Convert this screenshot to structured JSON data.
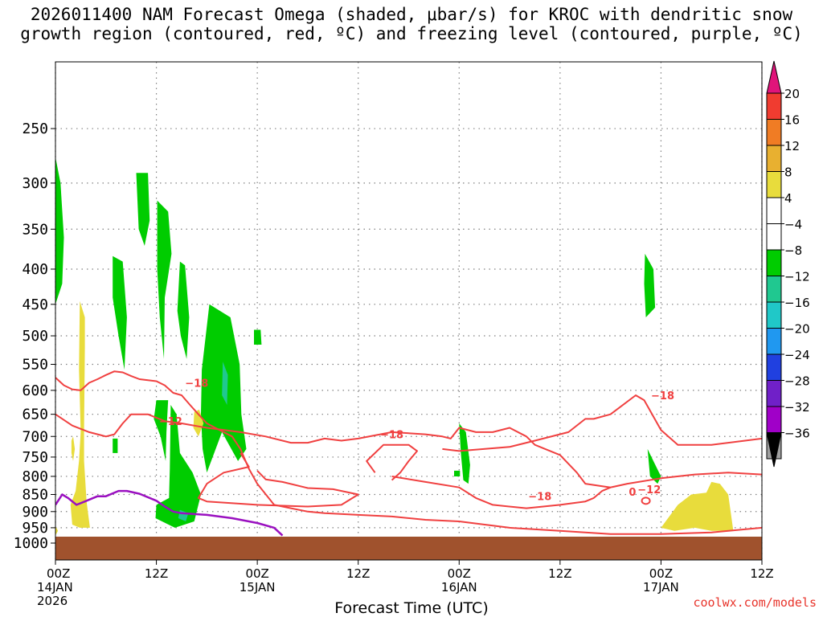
{
  "title": {
    "line1": "2026011400 NAM Forecast Omega (shaded, μbar/s) for KROC with dendritic snow",
    "line2": "growth region (contoured, red, ºC) and freezing level (contoured, purple, ºC)"
  },
  "xlabel": "Forecast Time (UTC)",
  "credit": "coolwx.com/models",
  "chart_data": {
    "type": "heatmap",
    "x_unit": "forecast hours from 2026011400",
    "xlim": [
      0,
      84
    ],
    "ylim": [
      1050,
      200
    ],
    "y_scale": "log",
    "grid": true,
    "y_ticks": [
      250,
      300,
      350,
      400,
      450,
      500,
      550,
      600,
      650,
      700,
      750,
      800,
      850,
      900,
      950,
      1000
    ],
    "x_ticks": [
      {
        "hour": 0,
        "lines": [
          "00Z",
          "14JAN",
          "2026"
        ]
      },
      {
        "hour": 12,
        "lines": [
          "12Z"
        ]
      },
      {
        "hour": 24,
        "lines": [
          "00Z",
          "15JAN"
        ]
      },
      {
        "hour": 36,
        "lines": [
          "12Z"
        ]
      },
      {
        "hour": 48,
        "lines": [
          "00Z",
          "16JAN"
        ]
      },
      {
        "hour": 60,
        "lines": [
          "12Z"
        ]
      },
      {
        "hour": 72,
        "lines": [
          "00Z",
          "17JAN"
        ]
      },
      {
        "hour": 84,
        "lines": [
          "12Z"
        ]
      }
    ],
    "colorbar": {
      "labels": [
        "20",
        "16",
        "12",
        "8",
        "4",
        "−4",
        "−8",
        "−12",
        "−16",
        "−20",
        "−24",
        "−28",
        "−32",
        "−36"
      ],
      "colors": [
        "#f0366b",
        "#f03c30",
        "#f07c24",
        "#e8b030",
        "#e8dc3c",
        "#ffffff",
        "#00cc00",
        "#20c890",
        "#20c8c8",
        "#2098f0",
        "#2040e0",
        "#7020c8",
        "#a000c8",
        "#a0a0a0"
      ]
    },
    "surface_color": "#a0522d",
    "omega_regions": [
      {
        "value": -6,
        "points": [
          [
            0,
            275
          ],
          [
            0.6,
            300
          ],
          [
            1,
            360
          ],
          [
            0.8,
            420
          ],
          [
            0,
            450
          ]
        ]
      },
      {
        "value": -6,
        "points": [
          [
            9.6,
            290
          ],
          [
            11,
            290
          ],
          [
            11.2,
            340
          ],
          [
            10.6,
            370
          ],
          [
            9.9,
            350
          ]
        ]
      },
      {
        "value": -6,
        "points": [
          [
            6.8,
            383
          ],
          [
            8,
            390
          ],
          [
            8.5,
            470
          ],
          [
            8.2,
            560
          ],
          [
            7.5,
            500
          ],
          [
            6.8,
            440
          ]
        ]
      },
      {
        "value": -6,
        "points": [
          [
            12.1,
            318
          ],
          [
            13.4,
            330
          ],
          [
            13.8,
            380
          ],
          [
            13,
            440
          ],
          [
            12.9,
            540
          ],
          [
            12.4,
            470
          ],
          [
            12.1,
            400
          ]
        ]
      },
      {
        "value": -6,
        "points": [
          [
            14.8,
            390
          ],
          [
            15.4,
            395
          ],
          [
            15.9,
            470
          ],
          [
            15.6,
            540
          ],
          [
            14.9,
            500
          ],
          [
            14.5,
            460
          ]
        ]
      },
      {
        "value": -6,
        "points": [
          [
            12,
            620
          ],
          [
            13.4,
            620
          ],
          [
            13.2,
            690
          ],
          [
            13.1,
            760
          ],
          [
            12.5,
            700
          ],
          [
            11.7,
            660
          ]
        ]
      },
      {
        "value": -6,
        "points": [
          [
            13.7,
            630
          ],
          [
            14.4,
            650
          ],
          [
            14.8,
            740
          ],
          [
            16.3,
            790
          ],
          [
            17.3,
            850
          ],
          [
            16.5,
            930
          ],
          [
            14.2,
            950
          ],
          [
            11.9,
            920
          ],
          [
            12,
            880
          ],
          [
            13.5,
            860
          ],
          [
            13.6,
            780
          ]
        ]
      },
      {
        "value": -6,
        "points": [
          [
            18.3,
            450
          ],
          [
            20.8,
            470
          ],
          [
            21.9,
            550
          ],
          [
            22.1,
            650
          ],
          [
            22.7,
            730
          ],
          [
            21.7,
            760
          ],
          [
            19.8,
            690
          ],
          [
            18,
            790
          ],
          [
            17.5,
            730
          ],
          [
            17.3,
            650
          ],
          [
            17.4,
            560
          ]
        ]
      },
      {
        "value": -6,
        "points": [
          [
            23.6,
            490
          ],
          [
            24.4,
            490
          ],
          [
            24.5,
            515
          ],
          [
            23.6,
            515
          ]
        ]
      },
      {
        "value": -6,
        "points": [
          [
            6.8,
            705
          ],
          [
            7.4,
            705
          ],
          [
            7.4,
            740
          ],
          [
            6.8,
            740
          ]
        ]
      },
      {
        "value": -6,
        "points": [
          [
            48,
            670
          ],
          [
            48.8,
            690
          ],
          [
            49.3,
            770
          ],
          [
            49.1,
            820
          ],
          [
            48.5,
            810
          ],
          [
            48.2,
            740
          ]
        ]
      },
      {
        "value": -6,
        "points": [
          [
            47.4,
            785
          ],
          [
            48.1,
            785
          ],
          [
            48.1,
            800
          ],
          [
            47.4,
            800
          ]
        ]
      },
      {
        "value": -6,
        "points": [
          [
            70.1,
            380
          ],
          [
            71.1,
            400
          ],
          [
            71.3,
            455
          ],
          [
            70.2,
            470
          ],
          [
            70,
            420
          ]
        ]
      },
      {
        "value": -6,
        "points": [
          [
            70.4,
            730
          ],
          [
            71.1,
            760
          ],
          [
            72,
            800
          ],
          [
            71.6,
            820
          ],
          [
            70.7,
            800
          ]
        ]
      },
      {
        "value": -10,
        "points": [
          [
            19.9,
            545
          ],
          [
            20.5,
            570
          ],
          [
            20.4,
            630
          ],
          [
            19.8,
            610
          ]
        ]
      },
      {
        "value": -10,
        "points": [
          [
            14.8,
            895
          ],
          [
            15.8,
            905
          ],
          [
            15.5,
            930
          ],
          [
            14.6,
            920
          ]
        ]
      },
      {
        "value": 6,
        "points": [
          [
            2.9,
            445
          ],
          [
            3.5,
            470
          ],
          [
            3.5,
            520
          ],
          [
            3.4,
            680
          ],
          [
            3.4,
            760
          ],
          [
            3.7,
            870
          ],
          [
            4.1,
            950
          ],
          [
            2.9,
            950
          ],
          [
            2,
            940
          ],
          [
            1.8,
            880
          ],
          [
            2.4,
            840
          ],
          [
            2.8,
            760
          ],
          [
            3,
            690
          ],
          [
            2.8,
            560
          ]
        ]
      },
      {
        "value": 6,
        "points": [
          [
            0,
            945
          ],
          [
            0.3,
            960
          ],
          [
            0,
            975
          ]
        ]
      },
      {
        "value": 6,
        "points": [
          [
            1.9,
            710
          ],
          [
            2.1,
            700
          ],
          [
            2.3,
            730
          ],
          [
            2.1,
            760
          ],
          [
            1.9,
            740
          ]
        ]
      },
      {
        "value": 6,
        "points": [
          [
            16.5,
            645
          ],
          [
            17.1,
            640
          ],
          [
            17.6,
            670
          ],
          [
            17,
            700
          ],
          [
            16.4,
            680
          ]
        ]
      },
      {
        "value": 6,
        "points": [
          [
            72,
            950
          ],
          [
            74,
            880
          ],
          [
            75.6,
            850
          ],
          [
            77.4,
            845
          ],
          [
            78,
            815
          ],
          [
            79,
            820
          ],
          [
            80,
            850
          ],
          [
            80.6,
            960
          ],
          [
            78,
            960
          ],
          [
            76,
            950
          ],
          [
            73.6,
            960
          ]
        ]
      }
    ],
    "dgz_minus18": [
      {
        "points": [
          [
            0,
            575
          ],
          [
            1,
            590
          ],
          [
            2,
            598
          ],
          [
            3,
            600
          ],
          [
            4,
            585
          ],
          [
            5,
            578
          ],
          [
            6,
            570
          ],
          [
            7,
            563
          ],
          [
            8,
            565
          ],
          [
            9,
            572
          ],
          [
            10,
            578
          ],
          [
            11,
            580
          ],
          [
            12,
            582
          ],
          [
            13,
            590
          ],
          [
            14,
            605
          ],
          [
            15,
            610
          ],
          [
            16,
            630
          ],
          [
            17,
            650
          ],
          [
            18,
            670
          ],
          [
            19,
            680
          ],
          [
            20,
            690
          ],
          [
            21,
            700
          ],
          [
            22,
            730
          ],
          [
            23,
            780
          ],
          [
            24,
            820
          ],
          [
            26,
            880
          ],
          [
            28,
            890
          ],
          [
            30,
            900
          ],
          [
            32,
            905
          ],
          [
            36,
            910
          ],
          [
            40,
            915
          ],
          [
            44,
            925
          ],
          [
            48,
            930
          ],
          [
            54,
            950
          ],
          [
            60,
            960
          ],
          [
            66,
            970
          ],
          [
            72,
            970
          ],
          [
            78,
            965
          ],
          [
            84,
            950
          ]
        ]
      },
      {
        "points": [
          [
            22,
            740
          ],
          [
            23,
            775
          ],
          [
            20,
            790
          ],
          [
            18,
            820
          ],
          [
            17,
            860
          ],
          [
            18,
            870
          ],
          [
            24,
            880
          ],
          [
            30,
            885
          ],
          [
            34,
            880
          ],
          [
            36,
            850
          ],
          [
            33,
            835
          ],
          [
            30,
            832
          ],
          [
            27,
            815
          ],
          [
            25,
            808
          ],
          [
            24,
            785
          ]
        ]
      },
      {
        "points": [
          [
            46,
            730
          ],
          [
            48,
            735
          ],
          [
            54,
            725
          ],
          [
            57,
            710
          ],
          [
            61,
            690
          ],
          [
            63,
            660
          ],
          [
            64,
            660
          ],
          [
            66,
            650
          ],
          [
            69,
            610
          ],
          [
            70,
            620
          ],
          [
            72,
            685
          ],
          [
            74,
            720
          ],
          [
            78,
            720
          ],
          [
            82,
            710
          ],
          [
            84,
            705
          ]
        ]
      }
    ],
    "dgz_minus12": [
      {
        "points": [
          [
            0,
            650
          ],
          [
            2,
            675
          ],
          [
            4,
            690
          ],
          [
            6,
            700
          ],
          [
            7,
            695
          ],
          [
            8,
            670
          ],
          [
            9,
            650
          ],
          [
            11,
            650
          ],
          [
            13,
            665
          ],
          [
            15,
            670
          ],
          [
            18,
            680
          ],
          [
            22,
            690
          ],
          [
            25,
            700
          ],
          [
            28,
            715
          ],
          [
            30,
            715
          ],
          [
            32,
            705
          ],
          [
            34,
            710
          ],
          [
            36,
            705
          ],
          [
            40,
            690
          ],
          [
            44,
            695
          ],
          [
            46,
            700
          ],
          [
            47,
            705
          ],
          [
            48,
            680
          ],
          [
            50,
            690
          ],
          [
            52,
            690
          ],
          [
            54,
            680
          ],
          [
            56,
            700
          ],
          [
            57,
            720
          ],
          [
            60,
            745
          ],
          [
            62,
            790
          ],
          [
            63,
            820
          ],
          [
            66,
            830
          ],
          [
            68,
            820
          ],
          [
            72,
            805
          ],
          [
            76,
            795
          ],
          [
            80,
            790
          ],
          [
            84,
            795
          ]
        ]
      },
      {
        "points": [
          [
            40,
            800
          ],
          [
            44,
            815
          ],
          [
            48,
            830
          ],
          [
            50,
            860
          ],
          [
            52,
            880
          ],
          [
            56,
            890
          ],
          [
            60,
            880
          ],
          [
            63,
            870
          ],
          [
            64,
            860
          ],
          [
            65,
            840
          ],
          [
            66,
            830
          ]
        ]
      },
      {
        "points": [
          [
            40,
            810
          ],
          [
            41,
            790
          ],
          [
            42,
            760
          ],
          [
            43,
            735
          ],
          [
            42,
            720
          ],
          [
            39,
            720
          ],
          [
            38,
            740
          ],
          [
            37,
            760
          ],
          [
            38,
            790
          ]
        ]
      }
    ],
    "freezing_level": [
      [
        0,
        880
      ],
      [
        0.8,
        850
      ],
      [
        1.5,
        860
      ],
      [
        2.5,
        880
      ],
      [
        3.5,
        870
      ],
      [
        5,
        855
      ],
      [
        6,
        855
      ],
      [
        7.5,
        840
      ],
      [
        8.5,
        840
      ],
      [
        10,
        848
      ],
      [
        12,
        868
      ],
      [
        13,
        885
      ],
      [
        14,
        900
      ],
      [
        15,
        905
      ],
      [
        18,
        910
      ],
      [
        21,
        920
      ],
      [
        24,
        935
      ],
      [
        26,
        950
      ],
      [
        27,
        975
      ]
    ],
    "dgz_labels": [
      {
        "text": "−18",
        "x": 16.8,
        "y": 585
      },
      {
        "text": "−12",
        "x": 13.7,
        "y": 665
      },
      {
        "text": "−18",
        "x": 40.0,
        "y": 695
      },
      {
        "text": "−18",
        "x": 57.6,
        "y": 855
      },
      {
        "text": "0",
        "x": 68.6,
        "y": 842
      },
      {
        "text": "−12",
        "x": 70.6,
        "y": 835
      },
      {
        "text": "−18",
        "x": 72.2,
        "y": 610
      }
    ]
  }
}
